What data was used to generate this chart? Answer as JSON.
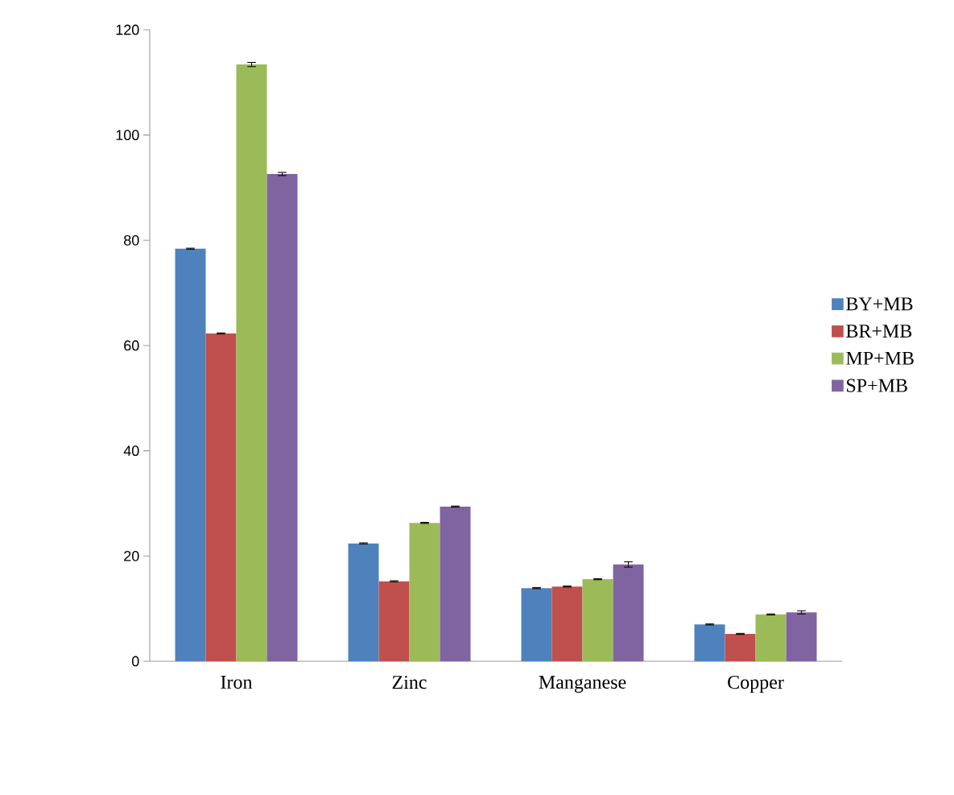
{
  "chart_data": {
    "type": "bar",
    "categories": [
      "Iron",
      "Zinc",
      "Manganese",
      "Copper"
    ],
    "series": [
      {
        "name": "BY+MB",
        "color": "#4f81bd",
        "values": [
          78.4,
          22.4,
          13.9,
          7.0
        ],
        "errors": [
          0.1,
          0.1,
          0.1,
          0.1
        ]
      },
      {
        "name": "BR+MB",
        "color": "#c0504d",
        "values": [
          62.3,
          15.2,
          14.2,
          5.2
        ],
        "errors": [
          0.1,
          0.1,
          0.1,
          0.1
        ]
      },
      {
        "name": "MP+MB",
        "color": "#9bbb59",
        "values": [
          113.4,
          26.3,
          15.6,
          8.9
        ],
        "errors": [
          0.4,
          0.1,
          0.1,
          0.1
        ]
      },
      {
        "name": "SP+MB",
        "color": "#8064a2",
        "values": [
          92.6,
          29.4,
          18.4,
          9.3
        ],
        "errors": [
          0.3,
          0.1,
          0.5,
          0.3
        ]
      }
    ],
    "ylim": [
      0,
      120
    ],
    "yticks": [
      0,
      20,
      40,
      60,
      80,
      100,
      120
    ],
    "grid": false,
    "legend": "right"
  }
}
